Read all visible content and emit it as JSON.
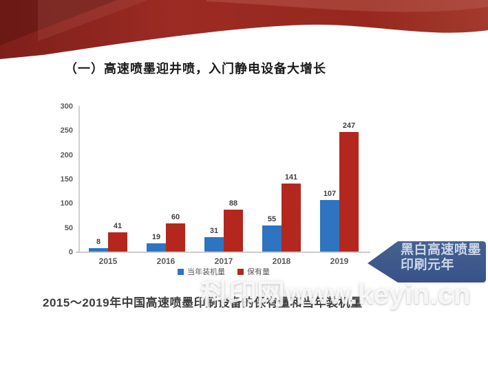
{
  "slide": {
    "title": "（一）高速喷墨迎井喷，入门静电设备大增长",
    "caption": "2015～2019年中国高速喷墨印刷设备的保有量和当年装机量",
    "watermark": "科印网www.keyin.cn",
    "callout": {
      "line1": "黑白高速喷墨",
      "line2": "印刷元年",
      "bg": "#3d5a8e",
      "text_color": "#ccd7ea"
    }
  },
  "chart_data": {
    "type": "bar",
    "categories": [
      "2015",
      "2016",
      "2017",
      "2018",
      "2019"
    ],
    "series": [
      {
        "name": "当年装机量",
        "color": "#2e74c0",
        "values": [
          8,
          19,
          31,
          55,
          107
        ]
      },
      {
        "name": "保有量",
        "color": "#b3271e",
        "values": [
          41,
          60,
          88,
          141,
          247
        ]
      }
    ],
    "title": "",
    "xlabel": "",
    "ylabel": "",
    "ylim": [
      0,
      300
    ],
    "yticks": [
      0,
      50,
      100,
      150,
      200,
      250,
      300
    ],
    "grid": false,
    "legend_position": "bottom"
  },
  "colors": {
    "banner_red_dark": "#5f1512",
    "banner_red": "#96271f",
    "banner_red_light": "#b85a4e",
    "axis": "#cccccc",
    "tick_text": "#595959",
    "value_text": "#3f3f3f"
  }
}
